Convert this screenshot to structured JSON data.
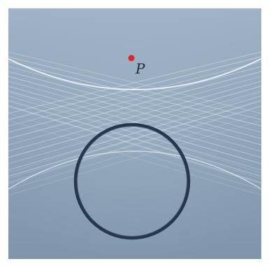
{
  "figure": {
    "point_label": "P",
    "colors": {
      "background_top": "#9fb2c6",
      "background_bottom": "#7f95ab",
      "envelope_lines": "#e8f0f8",
      "ring": "#26374d",
      "point": "#e0242e",
      "label": "#1d2a38"
    }
  }
}
